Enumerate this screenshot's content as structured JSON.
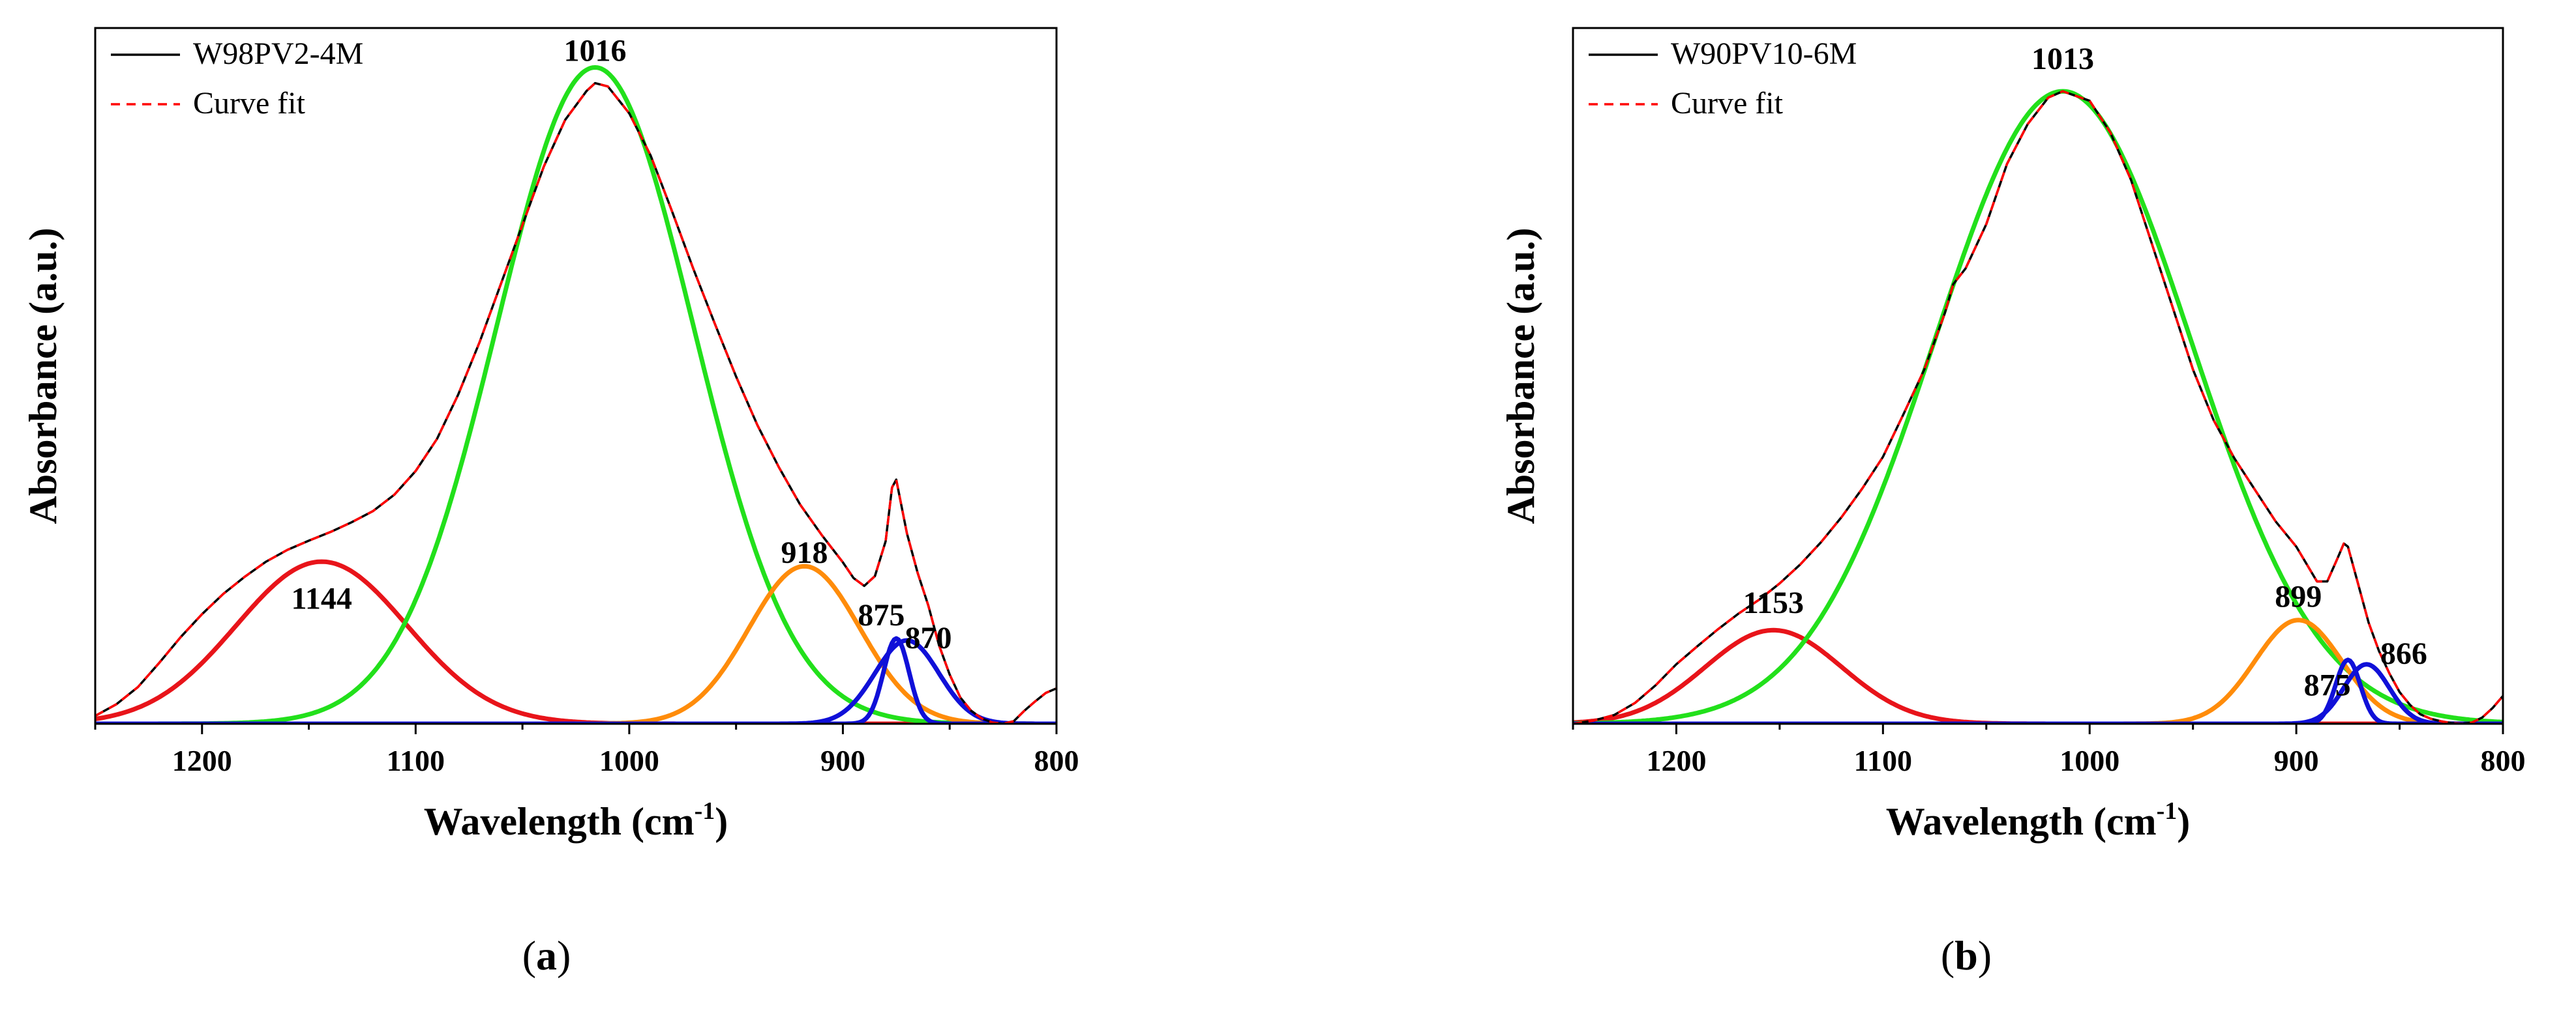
{
  "chart_data": [
    {
      "type": "line",
      "panel_label": "(a)",
      "panel_letter": "a",
      "xlabel": "Wavelength (cm",
      "xlabel_sup": "-1",
      "xlabel_close": ")",
      "ylabel": "Absorbance (a.u.)",
      "xlim": [
        1250,
        800
      ],
      "ylim": [
        0,
        1.06
      ],
      "xticks": [
        1200,
        1100,
        1000,
        900,
        800
      ],
      "xtick_labels": [
        "1200",
        "1100",
        "1000",
        "900",
        "800"
      ],
      "legend": [
        {
          "label": "W98PV2-4M",
          "color": "#000000",
          "dash": "solid"
        },
        {
          "label": "Curve fit",
          "color": "#ff0000",
          "dash": "dashed"
        }
      ],
      "series": [
        {
          "name": "band-1144",
          "color": "#e8141a",
          "center": 1144,
          "amplitude": 0.247,
          "sigma": 40
        },
        {
          "name": "band-1016",
          "color": "#22e01b",
          "center": 1016,
          "amplitude": 1.0,
          "sigma": 46
        },
        {
          "name": "band-918",
          "color": "#ff8c0a",
          "center": 918,
          "amplitude": 0.24,
          "sigma": 26
        },
        {
          "name": "band-875",
          "color": "#1010d8",
          "center": 875,
          "amplitude": 0.13,
          "sigma": 6
        },
        {
          "name": "band-870",
          "color": "#1010d8",
          "center": 870,
          "amplitude": 0.127,
          "sigma": 15
        }
      ],
      "spectrum": {
        "name": "W98PV2-4M",
        "color": "#000000",
        "x": [
          1250,
          1240,
          1230,
          1220,
          1210,
          1200,
          1190,
          1180,
          1170,
          1160,
          1150,
          1140,
          1130,
          1120,
          1110,
          1100,
          1090,
          1080,
          1070,
          1060,
          1050,
          1040,
          1030,
          1020,
          1016,
          1010,
          1000,
          990,
          980,
          970,
          960,
          950,
          940,
          930,
          920,
          910,
          900,
          895,
          890,
          885,
          880,
          877,
          875,
          870,
          865,
          860,
          855,
          850,
          845,
          840,
          835,
          830,
          825,
          820,
          815,
          810,
          805,
          800
        ],
        "y": [
          0.012,
          0.03,
          0.056,
          0.093,
          0.132,
          0.167,
          0.198,
          0.224,
          0.247,
          0.265,
          0.279,
          0.292,
          0.307,
          0.324,
          0.349,
          0.385,
          0.434,
          0.502,
          0.582,
          0.671,
          0.76,
          0.849,
          0.92,
          0.964,
          0.976,
          0.971,
          0.93,
          0.866,
          0.781,
          0.693,
          0.61,
          0.529,
          0.455,
          0.391,
          0.334,
          0.288,
          0.246,
          0.222,
          0.21,
          0.225,
          0.278,
          0.36,
          0.372,
          0.29,
          0.23,
          0.18,
          0.12,
          0.075,
          0.04,
          0.02,
          0.008,
          0.002,
          0.0,
          0.004,
          0.02,
          0.034,
          0.047,
          0.054
        ]
      },
      "peak_labels": [
        {
          "text": "1016",
          "x": 1016,
          "y": 1.01
        },
        {
          "text": "1144",
          "x": 1144,
          "y": 0.175
        },
        {
          "text": "918",
          "x": 918,
          "y": 0.245
        },
        {
          "text": "875",
          "x": 882,
          "y": 0.15
        },
        {
          "text": "870",
          "x": 860,
          "y": 0.115
        }
      ]
    },
    {
      "type": "line",
      "panel_label": "(b)",
      "panel_letter": "b",
      "xlabel": "Wavelength (cm",
      "xlabel_sup": "-1",
      "xlabel_close": ")",
      "ylabel": "Absorbance (a.u.)",
      "xlim": [
        1250,
        800
      ],
      "ylim": [
        0,
        1.1
      ],
      "xticks": [
        1200,
        1100,
        1000,
        900,
        800
      ],
      "xtick_labels": [
        "1200",
        "1100",
        "1000",
        "900",
        "800"
      ],
      "legend": [
        {
          "label": "W90PV10-6M",
          "color": "#000000",
          "dash": "solid"
        },
        {
          "label": "Curve fit",
          "color": "#ff0000",
          "dash": "dashed"
        }
      ],
      "series": [
        {
          "name": "band-1153",
          "color": "#e8141a",
          "center": 1153,
          "amplitude": 0.148,
          "sigma": 33
        },
        {
          "name": "band-1013",
          "color": "#22e01b",
          "center": 1013,
          "amplitude": 1.0,
          "sigma": 62
        },
        {
          "name": "band-899",
          "color": "#ff8c0a",
          "center": 899,
          "amplitude": 0.164,
          "sigma": 21
        },
        {
          "name": "band-875",
          "color": "#1010d8",
          "center": 875,
          "amplitude": 0.101,
          "sigma": 6
        },
        {
          "name": "band-866",
          "color": "#1010d8",
          "center": 866,
          "amplitude": 0.094,
          "sigma": 11
        }
      ],
      "spectrum": {
        "name": "W90PV10-6M",
        "color": "#000000",
        "x": [
          1250,
          1240,
          1230,
          1220,
          1210,
          1200,
          1190,
          1180,
          1170,
          1160,
          1150,
          1140,
          1130,
          1120,
          1110,
          1100,
          1090,
          1080,
          1070,
          1066,
          1060,
          1050,
          1040,
          1030,
          1020,
          1013,
          1000,
          990,
          980,
          970,
          960,
          950,
          940,
          930,
          920,
          910,
          900,
          890,
          885,
          880,
          877,
          875,
          870,
          865,
          860,
          855,
          850,
          845,
          840,
          835,
          830,
          825,
          820,
          815,
          810,
          805,
          800
        ],
        "y": [
          0.0,
          0.005,
          0.014,
          0.033,
          0.061,
          0.094,
          0.122,
          0.149,
          0.174,
          0.196,
          0.222,
          0.252,
          0.287,
          0.327,
          0.372,
          0.422,
          0.49,
          0.56,
          0.65,
          0.695,
          0.72,
          0.79,
          0.885,
          0.948,
          0.99,
          1.0,
          0.985,
          0.935,
          0.86,
          0.76,
          0.66,
          0.56,
          0.48,
          0.42,
          0.37,
          0.32,
          0.28,
          0.225,
          0.225,
          0.262,
          0.285,
          0.28,
          0.22,
          0.16,
          0.115,
          0.08,
          0.05,
          0.03,
          0.015,
          0.008,
          0.004,
          0.001,
          0.0,
          0.002,
          0.01,
          0.025,
          0.044
        ]
      },
      "peak_labels": [
        {
          "text": "1013",
          "x": 1013,
          "y": 1.035
        },
        {
          "text": "1153",
          "x": 1153,
          "y": 0.175
        },
        {
          "text": "899",
          "x": 899,
          "y": 0.185
        },
        {
          "text": "875",
          "x": 885,
          "y": 0.045
        },
        {
          "text": "866",
          "x": 848,
          "y": 0.095
        }
      ]
    }
  ]
}
